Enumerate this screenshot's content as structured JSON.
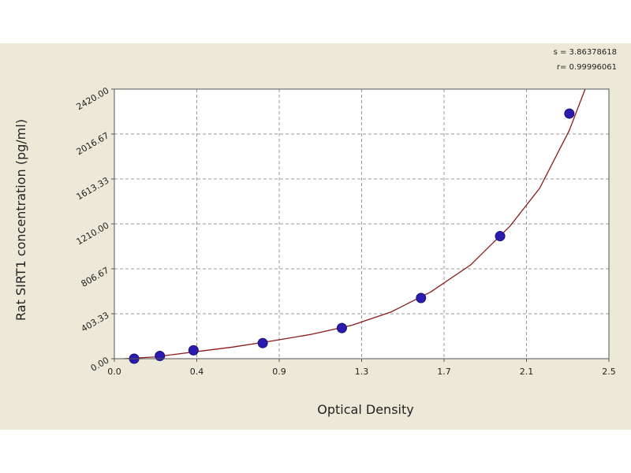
{
  "chart_data": {
    "type": "scatter",
    "xlabel": "Optical Density",
    "ylabel": "Rat SIRT1 concentration (pg/ml)",
    "x_ticks": [
      "0.0",
      "0.4",
      "0.9",
      "1.3",
      "1.7",
      "2.1",
      "2.5"
    ],
    "y_ticks": [
      "0.00",
      "403.33",
      "806.67",
      "1210.00",
      "1613.33",
      "2016.67",
      "2420.00"
    ],
    "xlim": [
      0,
      2.5
    ],
    "ylim": [
      0,
      2420
    ],
    "grid": true,
    "stats": [
      "s = 3.86378618",
      "r= 0.99996061"
    ],
    "colors": {
      "points": "#2a1cae",
      "curve": "#8b1a1a",
      "grid": "#9a9a9a"
    },
    "points": [
      {
        "x": 0.1,
        "y": 0
      },
      {
        "x": 0.23,
        "y": 25
      },
      {
        "x": 0.4,
        "y": 75
      },
      {
        "x": 0.75,
        "y": 140
      },
      {
        "x": 1.15,
        "y": 275
      },
      {
        "x": 1.55,
        "y": 545
      },
      {
        "x": 1.95,
        "y": 1100
      },
      {
        "x": 2.3,
        "y": 2200
      }
    ],
    "fit_curve": [
      {
        "x": 0.05,
        "y": 0
      },
      {
        "x": 0.2,
        "y": 15
      },
      {
        "x": 0.4,
        "y": 60
      },
      {
        "x": 0.6,
        "y": 105
      },
      {
        "x": 0.8,
        "y": 160
      },
      {
        "x": 1.0,
        "y": 220
      },
      {
        "x": 1.2,
        "y": 300
      },
      {
        "x": 1.4,
        "y": 420
      },
      {
        "x": 1.6,
        "y": 600
      },
      {
        "x": 1.8,
        "y": 840
      },
      {
        "x": 2.0,
        "y": 1190
      },
      {
        "x": 2.15,
        "y": 1530
      },
      {
        "x": 2.3,
        "y": 2050
      },
      {
        "x": 2.38,
        "y": 2420
      }
    ]
  }
}
